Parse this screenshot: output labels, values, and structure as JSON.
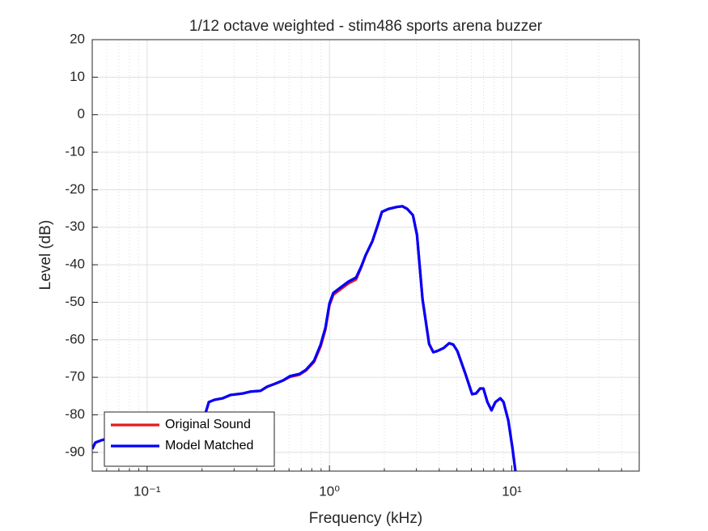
{
  "chart_data": {
    "type": "line",
    "title": "1/12 octave weighted - stim486 sports arena buzzer",
    "xlabel": "Frequency (kHz)",
    "ylabel": "Level (dB)",
    "xscale": "log",
    "grid": true,
    "x_minor_grid": true,
    "legend": "lower left",
    "xlim": [
      0.05,
      50
    ],
    "ylim": [
      -95,
      20
    ],
    "xticks": [
      {
        "value": 0.1,
        "label": "10⁻¹"
      },
      {
        "value": 1,
        "label": "10⁰"
      },
      {
        "value": 10,
        "label": "10¹"
      }
    ],
    "yticks": [
      -90,
      -80,
      -70,
      -60,
      -50,
      -40,
      -30,
      -20,
      -10,
      0,
      10,
      20
    ],
    "x": [
      0.05,
      0.052,
      0.056,
      0.07,
      0.1,
      0.15,
      0.2,
      0.218,
      0.234,
      0.259,
      0.287,
      0.335,
      0.371,
      0.419,
      0.455,
      0.504,
      0.558,
      0.606,
      0.685,
      0.743,
      0.823,
      0.894,
      0.95,
      1.0,
      1.05,
      1.14,
      1.27,
      1.4,
      1.49,
      1.58,
      1.72,
      1.83,
      1.94,
      2.11,
      2.34,
      2.51,
      2.67,
      2.87,
      3.02,
      3.24,
      3.52,
      3.71,
      3.9,
      4.23,
      4.54,
      4.78,
      5.03,
      5.57,
      6.06,
      6.37,
      6.7,
      6.99,
      7.35,
      7.74,
      8.13,
      8.65,
      9.01,
      9.58,
      10.1,
      10.6
    ],
    "series": [
      {
        "name": "Original Sound",
        "color": "#e41a1c",
        "values": [
          -89.1,
          -87.4,
          -86.8,
          -85.5,
          -84.5,
          -84,
          -82.7,
          -76.6,
          -76,
          -75.6,
          -74.7,
          -74.3,
          -73.8,
          -73.6,
          -72.5,
          -71.7,
          -70.8,
          -69.9,
          -69.3,
          -68.2,
          -65.9,
          -61.8,
          -57.3,
          -50.8,
          -48,
          -46.7,
          -45,
          -43.9,
          -40.8,
          -37.5,
          -33.7,
          -29.8,
          -25.9,
          -25.1,
          -24.6,
          -24.4,
          -25.1,
          -26.8,
          -32,
          -49.2,
          -61.1,
          -63.3,
          -63,
          -62.2,
          -60.9,
          -61.3,
          -63,
          -69.1,
          -74.5,
          -74.3,
          -73,
          -73,
          -76.6,
          -78.8,
          -76.6,
          -75.6,
          -76.6,
          -81.6,
          -89.1,
          -97
        ]
      },
      {
        "name": "Model Matched",
        "color": "#0000ff",
        "values": [
          -89.1,
          -87.4,
          -86.8,
          -85.5,
          -84.5,
          -84,
          -82.7,
          -76.6,
          -76,
          -75.6,
          -74.7,
          -74.3,
          -73.8,
          -73.6,
          -72.5,
          -71.7,
          -70.8,
          -69.7,
          -69.1,
          -68,
          -65.6,
          -61.3,
          -56.8,
          -50.3,
          -47.5,
          -46.2,
          -44.5,
          -43.4,
          -40.6,
          -37.4,
          -33.7,
          -29.8,
          -25.9,
          -25.1,
          -24.6,
          -24.4,
          -25.1,
          -26.8,
          -32,
          -49.2,
          -61.1,
          -63.3,
          -63,
          -62.2,
          -60.9,
          -61.3,
          -63,
          -69.1,
          -74.5,
          -74.3,
          -73,
          -73,
          -76.6,
          -78.8,
          -76.6,
          -75.6,
          -76.6,
          -81.6,
          -89.1,
          -97
        ]
      }
    ]
  }
}
